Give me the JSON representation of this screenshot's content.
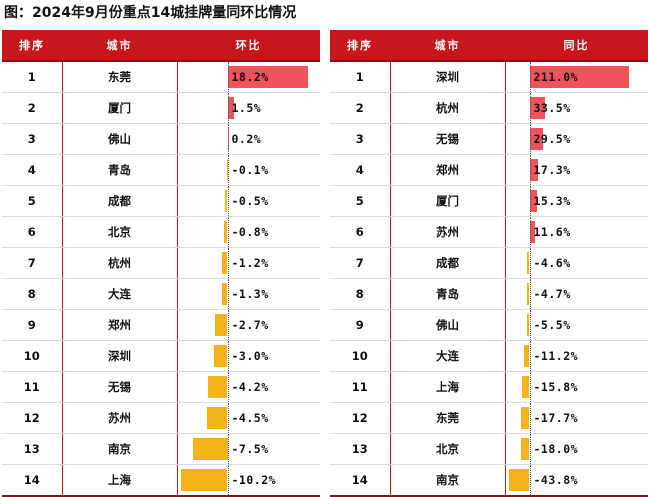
{
  "title": "图：2024年9月份重点14城挂牌量同环比情况",
  "colors": {
    "header": "#c8161d",
    "positive_bar": "#f1525c",
    "negative_bar": "#f5b21a"
  },
  "left_table": {
    "headers": [
      "排序",
      "城市",
      "环比"
    ],
    "rows": [
      {
        "rank": "1",
        "city": "东莞",
        "label": "18.2%",
        "value": 18.2
      },
      {
        "rank": "2",
        "city": "厦门",
        "label": "1.5%",
        "value": 1.5
      },
      {
        "rank": "3",
        "city": "佛山",
        "label": "0.2%",
        "value": 0.2
      },
      {
        "rank": "4",
        "city": "青岛",
        "label": "-0.1%",
        "value": -0.1
      },
      {
        "rank": "5",
        "city": "成都",
        "label": "-0.5%",
        "value": -0.5
      },
      {
        "rank": "6",
        "city": "北京",
        "label": "-0.8%",
        "value": -0.8
      },
      {
        "rank": "7",
        "city": "杭州",
        "label": "-1.2%",
        "value": -1.2
      },
      {
        "rank": "8",
        "city": "大连",
        "label": "-1.3%",
        "value": -1.3
      },
      {
        "rank": "9",
        "city": "郑州",
        "label": "-2.7%",
        "value": -2.7
      },
      {
        "rank": "10",
        "city": "深圳",
        "label": "-3.0%",
        "value": -3.0
      },
      {
        "rank": "11",
        "city": "无锡",
        "label": "-4.2%",
        "value": -4.2
      },
      {
        "rank": "12",
        "city": "苏州",
        "label": "-4.5%",
        "value": -4.5
      },
      {
        "rank": "13",
        "city": "南京",
        "label": "-7.5%",
        "value": -7.5
      },
      {
        "rank": "14",
        "city": "上海",
        "label": "-10.2%",
        "value": -10.2
      }
    ]
  },
  "right_table": {
    "headers": [
      "排序",
      "城市",
      "同比"
    ],
    "rows": [
      {
        "rank": "1",
        "city": "深圳",
        "label": "211.0%",
        "value": 211.0
      },
      {
        "rank": "2",
        "city": "杭州",
        "label": "33.5%",
        "value": 33.5
      },
      {
        "rank": "3",
        "city": "无锡",
        "label": "29.5%",
        "value": 29.5
      },
      {
        "rank": "4",
        "city": "郑州",
        "label": "17.3%",
        "value": 17.3
      },
      {
        "rank": "5",
        "city": "厦门",
        "label": "15.3%",
        "value": 15.3
      },
      {
        "rank": "6",
        "city": "苏州",
        "label": "11.6%",
        "value": 11.6
      },
      {
        "rank": "7",
        "city": "成都",
        "label": "-4.6%",
        "value": -4.6
      },
      {
        "rank": "8",
        "city": "青岛",
        "label": "-4.7%",
        "value": -4.7
      },
      {
        "rank": "9",
        "city": "佛山",
        "label": "-5.5%",
        "value": -5.5
      },
      {
        "rank": "10",
        "city": "大连",
        "label": "-11.2%",
        "value": -11.2
      },
      {
        "rank": "11",
        "city": "上海",
        "label": "-15.8%",
        "value": -15.8
      },
      {
        "rank": "12",
        "city": "东莞",
        "label": "-17.7%",
        "value": -17.7
      },
      {
        "rank": "13",
        "city": "北京",
        "label": "-18.0%",
        "value": -18.0
      },
      {
        "rank": "14",
        "city": "南京",
        "label": "-43.8%",
        "value": -43.8
      }
    ]
  }
}
